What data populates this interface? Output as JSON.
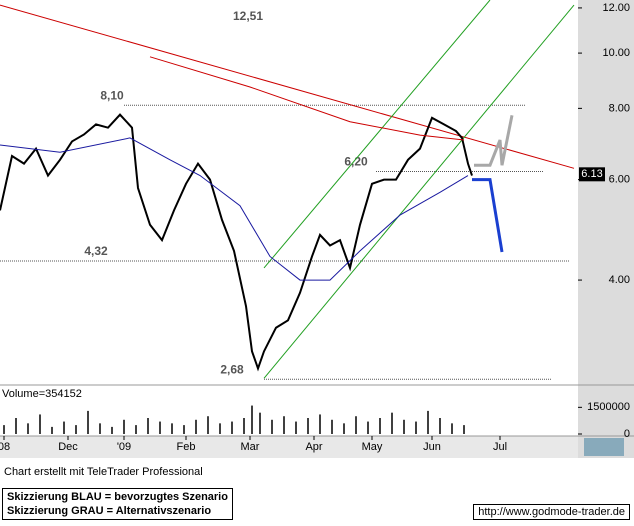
{
  "chart_data": {
    "type": "line",
    "xlim": [
      0,
      289
    ],
    "xticks": [
      {
        "value": 2,
        "label": "08"
      },
      {
        "value": 34,
        "label": "Dec"
      },
      {
        "value": 62,
        "label": "'09"
      },
      {
        "value": 93,
        "label": "Feb"
      },
      {
        "value": 125,
        "label": "Mar"
      },
      {
        "value": 157,
        "label": "Apr"
      },
      {
        "value": 186,
        "label": "May"
      },
      {
        "value": 216,
        "label": "Jun"
      },
      {
        "value": 250,
        "label": "Jul"
      }
    ],
    "ylim": [
      2.64,
      12.39
    ],
    "log_scale": true,
    "yticks": [
      {
        "value": 12,
        "label": "12.00"
      },
      {
        "value": 10,
        "label": "10.00"
      },
      {
        "value": 8,
        "label": "8.00"
      },
      {
        "value": 6,
        "label": "6.00"
      },
      {
        "value": 4,
        "label": "4.00"
      }
    ],
    "last_price": {
      "value": 6.13,
      "label": "6.13"
    },
    "series": [
      {
        "name": "Kurs",
        "color": "#000000",
        "x": [
          0,
          6,
          12,
          18,
          24,
          30,
          36,
          42,
          48,
          54,
          60,
          66,
          69,
          75,
          81,
          87,
          93,
          99,
          105,
          111,
          117,
          123,
          126,
          129,
          132,
          138,
          144,
          150,
          156,
          160,
          165,
          170,
          175,
          180,
          186,
          192,
          198,
          204,
          210,
          216,
          222,
          228,
          231,
          234,
          236
        ],
        "values": [
          5.3,
          6.6,
          6.4,
          6.8,
          6.1,
          6.5,
          7.0,
          7.2,
          7.5,
          7.4,
          7.8,
          7.4,
          5.8,
          5.0,
          4.7,
          5.3,
          5.9,
          6.4,
          6.0,
          5.1,
          4.5,
          3.6,
          3.0,
          2.8,
          3.0,
          3.3,
          3.4,
          3.8,
          4.4,
          4.8,
          4.6,
          4.7,
          4.2,
          5.0,
          5.9,
          6.0,
          6.0,
          6.5,
          6.8,
          7.7,
          7.5,
          7.3,
          7.1,
          6.4,
          6.1
        ]
      },
      {
        "name": "GD200",
        "color": "#cc0000",
        "x": [
          75,
          125,
          175,
          210,
          232
        ],
        "values": [
          9.85,
          8.72,
          7.58,
          7.18,
          7.04
        ]
      },
      {
        "name": "GD38",
        "color": "#1a1aa0",
        "x": [
          0,
          30,
          65,
          85,
          100,
          120,
          135,
          150,
          165,
          180,
          200,
          220,
          234
        ],
        "values": [
          6.9,
          6.7,
          7.1,
          6.5,
          6.1,
          5.4,
          4.4,
          4.0,
          4.0,
          4.5,
          5.2,
          5.7,
          6.1
        ]
      }
    ],
    "trend_lines": [
      {
        "color": "#cc0000",
        "points": [
          [
            0,
            12.14
          ],
          [
            287,
            6.28
          ]
        ]
      },
      {
        "color": "#22a022",
        "points": [
          [
            132,
            4.2
          ],
          [
            245,
            12.39
          ]
        ]
      },
      {
        "color": "#22a022",
        "points": [
          [
            132,
            2.69
          ],
          [
            287,
            12.14
          ]
        ]
      }
    ],
    "scenarios": [
      {
        "label": "Skizzierung BLAU = bevorzugtes Szenario",
        "color": "#1a3fd0",
        "points": [
          [
            236,
            6.0
          ],
          [
            245,
            6.0
          ],
          [
            251,
            4.48
          ]
        ]
      },
      {
        "label": "Skizzierung GRAU = Alternativszenario",
        "color": "#a8a8a8",
        "points": [
          [
            237,
            6.36
          ],
          [
            245,
            6.36
          ],
          [
            250,
            7.04
          ],
          [
            251,
            6.36
          ],
          [
            256,
            7.78
          ]
        ]
      }
    ],
    "annotations": [
      {
        "text": "12,51",
        "value": 12.51,
        "x": 124
      },
      {
        "text": "8,10",
        "value": 8.1,
        "x": 56,
        "x0": 62,
        "x1": 263
      },
      {
        "text": "6,20",
        "value": 6.2,
        "x": 178,
        "x0": 188,
        "x1": 272
      },
      {
        "text": "4,32",
        "value": 4.32,
        "x": 48,
        "x0": 0,
        "x1": 285
      },
      {
        "text": "2,68",
        "value": 2.68,
        "x": 116,
        "x0": 132,
        "x1": 276
      }
    ],
    "volume": {
      "label": "Volume=354152",
      "ylim": [
        0,
        1800000
      ],
      "yticks": [
        1500000,
        0
      ],
      "x": [
        2,
        8,
        14,
        20,
        26,
        32,
        38,
        44,
        50,
        56,
        62,
        68,
        74,
        80,
        86,
        92,
        98,
        104,
        110,
        116,
        122,
        126,
        130,
        136,
        142,
        148,
        154,
        160,
        166,
        172,
        178,
        184,
        190,
        196,
        202,
        208,
        214,
        220,
        226,
        232
      ],
      "values": [
        500000,
        900000,
        600000,
        1100000,
        400000,
        700000,
        500000,
        1300000,
        600000,
        400000,
        800000,
        500000,
        900000,
        700000,
        600000,
        500000,
        800000,
        1000000,
        600000,
        700000,
        900000,
        1600000,
        1200000,
        800000,
        1000000,
        700000,
        900000,
        1100000,
        800000,
        600000,
        1000000,
        700000,
        900000,
        1200000,
        800000,
        700000,
        1300000,
        900000,
        600000,
        500000
      ]
    },
    "footer": "Chart erstellt mit TeleTrader Professional",
    "url": "http://www.godmode-trader.de"
  }
}
